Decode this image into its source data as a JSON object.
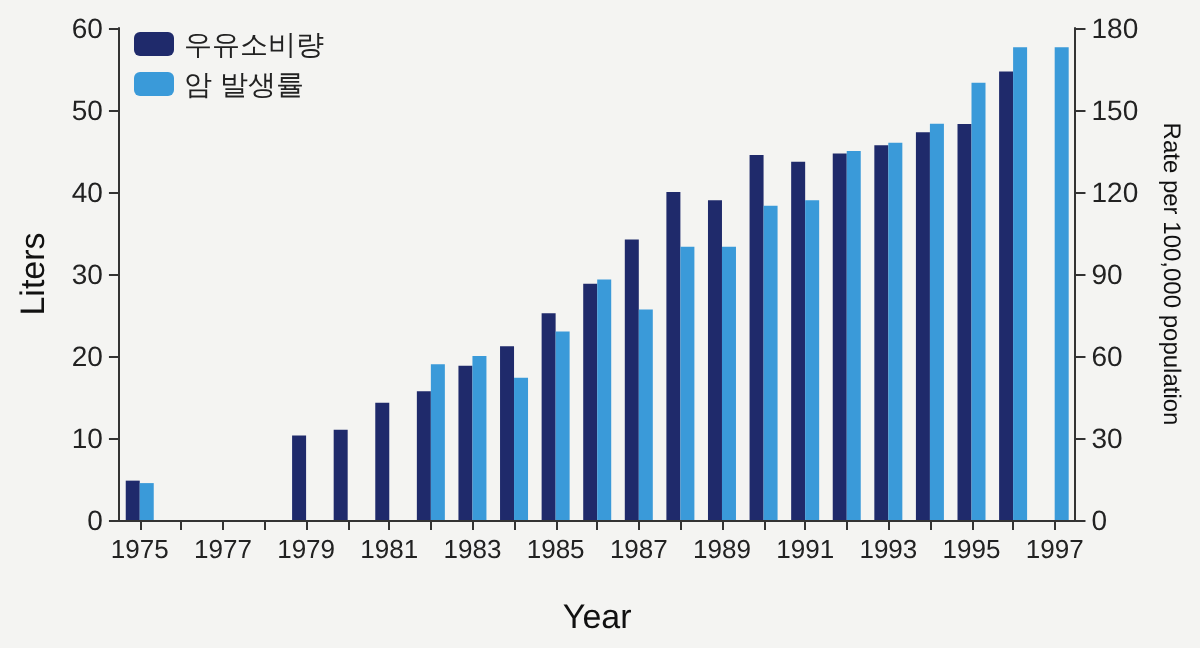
{
  "chart_data": {
    "type": "bar",
    "xlabel": "Year",
    "ylabel": "Liters",
    "y2label": "Rate per 100,000 population",
    "categories": [
      "1975",
      null,
      "1977",
      null,
      "1979",
      null,
      "1981",
      null,
      "1983",
      null,
      "1985",
      null,
      "1987",
      null,
      "1989",
      null,
      "1991",
      null,
      "1993",
      null,
      "1995",
      null,
      "1997"
    ],
    "series": [
      {
        "name": "우유소비량",
        "color": "#1f2a6b",
        "values": [
          4.8,
          null,
          null,
          null,
          10.3,
          11,
          14.3,
          15.7,
          18.8,
          21.2,
          25.2,
          28.8,
          34.2,
          40,
          39,
          44.5,
          43.7,
          44.7,
          45.7,
          47.3,
          48.3,
          54.7,
          null
        ]
      },
      {
        "name": "암 발생률",
        "color": "#3a9ad9",
        "axis": "y2",
        "values": [
          13.5,
          null,
          null,
          null,
          null,
          null,
          null,
          57,
          60,
          52,
          69,
          88,
          77,
          100,
          100,
          115,
          117,
          135,
          138,
          145,
          160,
          173,
          173
        ]
      }
    ],
    "ylim": [
      0,
      60
    ],
    "yticks": [
      0,
      10,
      20,
      30,
      40,
      50,
      60
    ],
    "y2lim": [
      0,
      180
    ],
    "y2ticks": [
      0,
      30,
      60,
      90,
      120,
      150,
      180
    ],
    "grid": false,
    "legend": "top left"
  }
}
